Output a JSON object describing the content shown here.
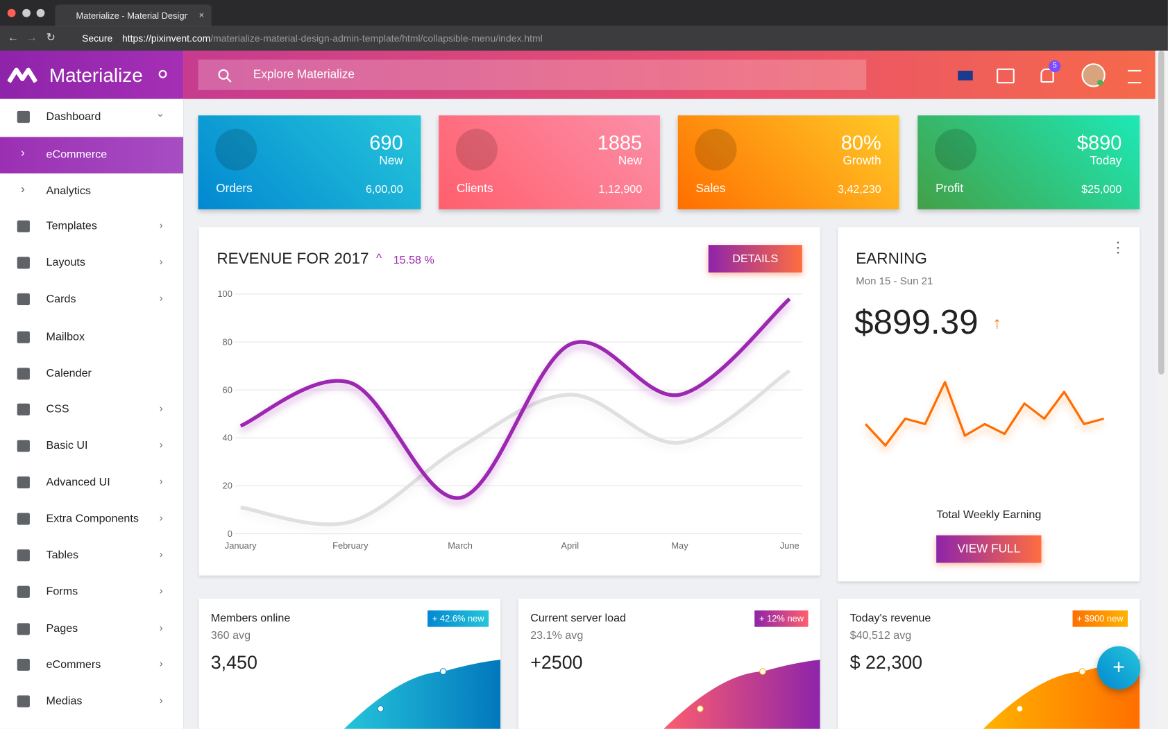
{
  "browser": {
    "tab_title": "Materialize - Material Design A",
    "secure": "Secure",
    "url_host": "https://pixinvent.com",
    "url_path": "/materialize-material-design-admin-template/html/collapsible-menu/index.html"
  },
  "header": {
    "brand": "Materialize",
    "search": "Explore Materialize",
    "notifications": 5
  },
  "sidebar": [
    "Dashboard",
    "eCommerce",
    "Analytics",
    "Templates",
    "Layouts",
    "Cards",
    "Mailbox",
    "Calender",
    "CSS",
    "Basic UI",
    "Advanced UI",
    "Extra Components",
    "Tables",
    "Forms",
    "Pages",
    "eCommers",
    "Medias"
  ],
  "stat_cards": [
    {
      "value": "690",
      "sub": "New",
      "label": "Orders",
      "total": "6,00,00"
    },
    {
      "value": "1885",
      "sub": "New",
      "label": "Clients",
      "total": "1,12,900"
    },
    {
      "value": "80%",
      "sub": "Growth",
      "label": "Sales",
      "total": "3,42,230"
    },
    {
      "value": "$890",
      "sub": "Today",
      "label": "Profit",
      "total": "$25,000"
    }
  ],
  "revenue": {
    "title": "REVENUE FOR 2017",
    "change": "15.58 %",
    "button": "DETAILS",
    "chart": {
      "type": "line",
      "categories": [
        "January",
        "February",
        "March",
        "April",
        "May",
        "June"
      ],
      "ylim": [
        0,
        100
      ],
      "yticks": [
        0,
        20,
        40,
        60,
        80,
        100
      ],
      "grid": true,
      "series": [
        {
          "color": "#9c27b0",
          "values": [
            45,
            63,
            15,
            79,
            58,
            98
          ]
        },
        {
          "color": "#e0e0e0",
          "values": [
            11,
            5,
            36,
            58,
            38,
            68
          ]
        }
      ]
    }
  },
  "earning": {
    "title": "EARNING",
    "range": "Mon 15 - Sun 21",
    "amount": "$899.39",
    "footer": "Total Weekly Earning",
    "button": "VIEW FULL",
    "chart": {
      "type": "line",
      "color": "#ff6d00",
      "ylim": [
        0,
        100
      ],
      "values": [
        42,
        18,
        48,
        42,
        89,
        29,
        42,
        31,
        65,
        48,
        78,
        42,
        48
      ]
    }
  },
  "mini_cards": [
    {
      "title": "Members online",
      "avg": "360 avg",
      "badge": "+ 42.6% new",
      "value": "3,450"
    },
    {
      "title": "Current server load",
      "avg": "23.1% avg",
      "badge": "+ 12% new",
      "value": "+2500"
    },
    {
      "title": "Today's revenue",
      "avg": "$40,512 avg",
      "badge": "+ $900 new",
      "value": "$ 22,300"
    }
  ]
}
